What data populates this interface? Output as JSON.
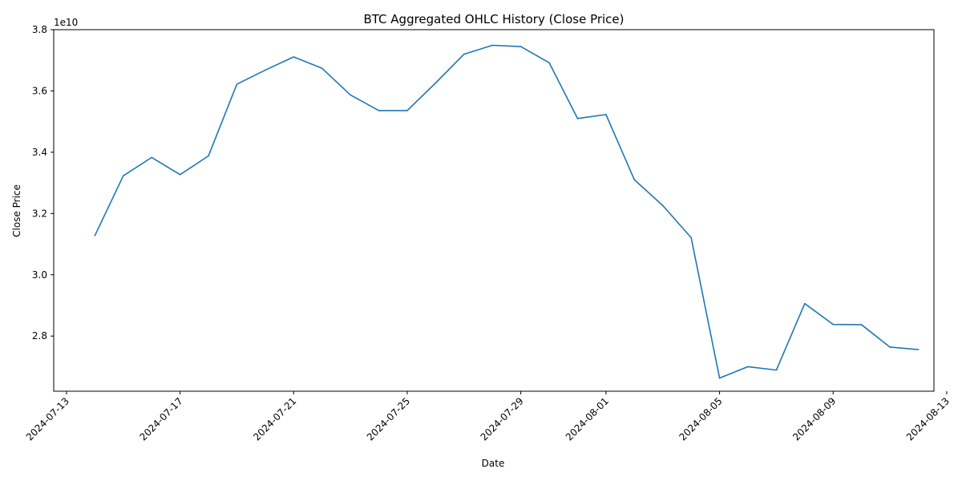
{
  "chart_data": {
    "type": "line",
    "title": "BTC Aggregated OHLC History (Close Price)",
    "xlabel": "Date",
    "ylabel": "Close Price",
    "y_offset_label": "1e10",
    "y_scale": 10000000000,
    "grid": false,
    "x_range": [
      "2024-07-13",
      "2024-08-13"
    ],
    "ylim": [
      2.62,
      3.8
    ],
    "x_ticks": [
      "2024-07-13",
      "2024-07-17",
      "2024-07-21",
      "2024-07-25",
      "2024-07-29",
      "2024-08-01",
      "2024-08-05",
      "2024-08-09",
      "2024-08-13"
    ],
    "y_ticks": [
      "2.8",
      "3.0",
      "3.2",
      "3.4",
      "3.6",
      "3.8"
    ],
    "line_color": "#1f77b4",
    "x": [
      "2024-07-14",
      "2024-07-15",
      "2024-07-16",
      "2024-07-17",
      "2024-07-18",
      "2024-07-19",
      "2024-07-20",
      "2024-07-21",
      "2024-07-22",
      "2024-07-23",
      "2024-07-24",
      "2024-07-25",
      "2024-07-26",
      "2024-07-27",
      "2024-07-28",
      "2024-07-29",
      "2024-07-30",
      "2024-07-31",
      "2024-08-01",
      "2024-08-02",
      "2024-08-03",
      "2024-08-04",
      "2024-08-05",
      "2024-08-06",
      "2024-08-07",
      "2024-08-08",
      "2024-08-09",
      "2024-08-10",
      "2024-08-11",
      "2024-08-12"
    ],
    "series": [
      {
        "values": [
          3.128,
          3.323,
          3.383,
          3.327,
          3.388,
          3.622,
          3.668,
          3.711,
          3.674,
          3.587,
          3.536,
          3.536,
          3.626,
          3.72,
          3.749,
          3.745,
          3.692,
          3.51,
          3.523,
          3.31,
          3.226,
          3.121,
          2.663,
          2.7,
          2.689,
          2.906,
          2.838,
          2.837,
          2.764,
          2.756
        ]
      }
    ]
  }
}
